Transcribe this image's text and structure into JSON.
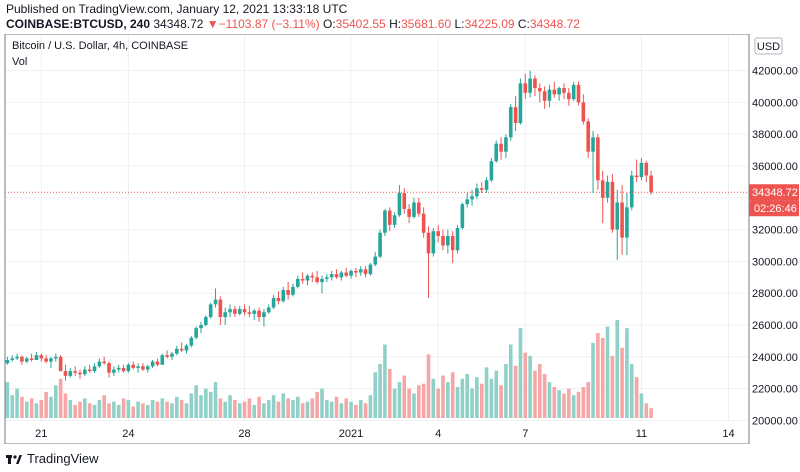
{
  "header": {
    "published": "Published on TradingView.com, January 12, 2021 13:33:18 UTC",
    "symbol": "COINBASE:BTCUSD, 240",
    "last": "34348.72",
    "change_arrow": "▼",
    "change": "−1103.87 (−3.11%)",
    "o_label": "O:",
    "o_value": "35402.55",
    "h_label": "H:",
    "h_value": "35681.60",
    "l_label": "L:",
    "l_value": "34225.09",
    "c_label": "C:",
    "c_value": "34348.72"
  },
  "legend": {
    "title": "Bitcoin / U.S. Dollar, 4h, COINBASE",
    "vol": "Vol"
  },
  "currency_button": "USD",
  "price_label": "34348.72",
  "countdown_label": "02:26:46",
  "footer": {
    "brand": "TradingView"
  },
  "colors": {
    "up": "#26a69a",
    "down": "#ef5350",
    "vol_up": "#8fd1c9",
    "vol_down": "#f5a6a5",
    "grid": "#eef0f3",
    "last_line": "#ef5350"
  },
  "chart_data": {
    "type": "candlestick",
    "title": "Bitcoin / U.S. Dollar, 4h, COINBASE",
    "interval": "4h",
    "y_ticks": [
      20000,
      22000,
      24000,
      26000,
      28000,
      30000,
      32000,
      34000,
      36000,
      38000,
      40000,
      42000
    ],
    "y_tick_labels": [
      "20000.00",
      "22000.00",
      "24000.00",
      "26000.00",
      "28000.00",
      "30000.00",
      "32000.00",
      "34000.00",
      "36000.00",
      "38000.00",
      "40000.00",
      "42000.00"
    ],
    "ylim": [
      19900,
      44300
    ],
    "x_ticks": [
      {
        "label": "21",
        "index": 7
      },
      {
        "label": "24",
        "index": 25
      },
      {
        "label": "28",
        "index": 49
      },
      {
        "label": "2021",
        "index": 71
      },
      {
        "label": "4",
        "index": 89
      },
      {
        "label": "7",
        "index": 107
      },
      {
        "label": "11",
        "index": 131
      },
      {
        "label": "14",
        "index": 149
      }
    ],
    "last_price": 34348.72,
    "candles": [
      {
        "o": 23600,
        "h": 24000,
        "l": 23500,
        "c": 23800
      },
      {
        "o": 23800,
        "h": 24100,
        "l": 23700,
        "c": 23900
      },
      {
        "o": 23900,
        "h": 24200,
        "l": 23800,
        "c": 24000
      },
      {
        "o": 24000,
        "h": 24100,
        "l": 23500,
        "c": 23700
      },
      {
        "o": 23700,
        "h": 24000,
        "l": 23600,
        "c": 23900
      },
      {
        "o": 23900,
        "h": 24200,
        "l": 23700,
        "c": 23800
      },
      {
        "o": 23800,
        "h": 24300,
        "l": 23800,
        "c": 24100
      },
      {
        "o": 24100,
        "h": 24200,
        "l": 23700,
        "c": 23900
      },
      {
        "o": 23900,
        "h": 24100,
        "l": 23600,
        "c": 23700
      },
      {
        "o": 23700,
        "h": 24000,
        "l": 23300,
        "c": 23900
      },
      {
        "o": 23900,
        "h": 24200,
        "l": 23700,
        "c": 24000
      },
      {
        "o": 24000,
        "h": 24100,
        "l": 23100,
        "c": 23100
      },
      {
        "o": 23100,
        "h": 23500,
        "l": 22500,
        "c": 22800
      },
      {
        "o": 22800,
        "h": 23300,
        "l": 22700,
        "c": 23100
      },
      {
        "o": 23100,
        "h": 23400,
        "l": 22800,
        "c": 23000
      },
      {
        "o": 23000,
        "h": 23200,
        "l": 22600,
        "c": 22900
      },
      {
        "o": 22900,
        "h": 23400,
        "l": 22800,
        "c": 23200
      },
      {
        "o": 23200,
        "h": 23500,
        "l": 23000,
        "c": 23100
      },
      {
        "o": 23100,
        "h": 23600,
        "l": 23000,
        "c": 23400
      },
      {
        "o": 23400,
        "h": 23900,
        "l": 23300,
        "c": 23700
      },
      {
        "o": 23700,
        "h": 24000,
        "l": 23500,
        "c": 23600
      },
      {
        "o": 23600,
        "h": 23700,
        "l": 22700,
        "c": 23000
      },
      {
        "o": 23000,
        "h": 23400,
        "l": 22800,
        "c": 23200
      },
      {
        "o": 23200,
        "h": 23500,
        "l": 23000,
        "c": 23300
      },
      {
        "o": 23300,
        "h": 23500,
        "l": 23000,
        "c": 23100
      },
      {
        "o": 23100,
        "h": 23600,
        "l": 23000,
        "c": 23500
      },
      {
        "o": 23500,
        "h": 23700,
        "l": 23200,
        "c": 23300
      },
      {
        "o": 23300,
        "h": 23600,
        "l": 23000,
        "c": 23400
      },
      {
        "o": 23400,
        "h": 23600,
        "l": 23100,
        "c": 23200
      },
      {
        "o": 23200,
        "h": 23500,
        "l": 23000,
        "c": 23400
      },
      {
        "o": 23400,
        "h": 23800,
        "l": 23300,
        "c": 23700
      },
      {
        "o": 23700,
        "h": 23900,
        "l": 23400,
        "c": 23500
      },
      {
        "o": 23500,
        "h": 24200,
        "l": 23500,
        "c": 24100
      },
      {
        "o": 24100,
        "h": 24400,
        "l": 23900,
        "c": 24000
      },
      {
        "o": 24000,
        "h": 24300,
        "l": 23800,
        "c": 24200
      },
      {
        "o": 24200,
        "h": 24700,
        "l": 24100,
        "c": 24500
      },
      {
        "o": 24500,
        "h": 24900,
        "l": 24300,
        "c": 24400
      },
      {
        "o": 24400,
        "h": 24800,
        "l": 24200,
        "c": 24700
      },
      {
        "o": 24700,
        "h": 25300,
        "l": 24600,
        "c": 25200
      },
      {
        "o": 25200,
        "h": 25900,
        "l": 25100,
        "c": 25800
      },
      {
        "o": 25800,
        "h": 26200,
        "l": 25500,
        "c": 26000
      },
      {
        "o": 26000,
        "h": 26600,
        "l": 25900,
        "c": 26500
      },
      {
        "o": 26500,
        "h": 27400,
        "l": 26400,
        "c": 27300
      },
      {
        "o": 27300,
        "h": 28300,
        "l": 27100,
        "c": 27600
      },
      {
        "o": 27600,
        "h": 27800,
        "l": 26000,
        "c": 26500
      },
      {
        "o": 26500,
        "h": 27100,
        "l": 26000,
        "c": 26800
      },
      {
        "o": 26800,
        "h": 27300,
        "l": 26500,
        "c": 27000
      },
      {
        "o": 27000,
        "h": 27200,
        "l": 26500,
        "c": 26700
      },
      {
        "o": 26700,
        "h": 27200,
        "l": 26600,
        "c": 27000
      },
      {
        "o": 27000,
        "h": 27300,
        "l": 26600,
        "c": 26800
      },
      {
        "o": 26800,
        "h": 27200,
        "l": 26500,
        "c": 26700
      },
      {
        "o": 26700,
        "h": 27000,
        "l": 26300,
        "c": 26900
      },
      {
        "o": 26900,
        "h": 27100,
        "l": 26200,
        "c": 26500
      },
      {
        "o": 26500,
        "h": 27000,
        "l": 25900,
        "c": 26800
      },
      {
        "o": 26800,
        "h": 27300,
        "l": 26700,
        "c": 27100
      },
      {
        "o": 27100,
        "h": 27900,
        "l": 27000,
        "c": 27700
      },
      {
        "o": 27700,
        "h": 28100,
        "l": 27300,
        "c": 27500
      },
      {
        "o": 27500,
        "h": 28400,
        "l": 27400,
        "c": 28200
      },
      {
        "o": 28200,
        "h": 28700,
        "l": 27600,
        "c": 27900
      },
      {
        "o": 27900,
        "h": 28600,
        "l": 27800,
        "c": 28400
      },
      {
        "o": 28400,
        "h": 29100,
        "l": 28300,
        "c": 28900
      },
      {
        "o": 28900,
        "h": 29300,
        "l": 28600,
        "c": 28800
      },
      {
        "o": 28800,
        "h": 29200,
        "l": 28500,
        "c": 29100
      },
      {
        "o": 29100,
        "h": 29300,
        "l": 28700,
        "c": 29000
      },
      {
        "o": 29000,
        "h": 29400,
        "l": 28600,
        "c": 28700
      },
      {
        "o": 28700,
        "h": 29100,
        "l": 28000,
        "c": 28900
      },
      {
        "o": 28900,
        "h": 29200,
        "l": 28700,
        "c": 29000
      },
      {
        "o": 29000,
        "h": 29400,
        "l": 28800,
        "c": 29200
      },
      {
        "o": 29200,
        "h": 29500,
        "l": 28900,
        "c": 29000
      },
      {
        "o": 29000,
        "h": 29400,
        "l": 28800,
        "c": 29300
      },
      {
        "o": 29300,
        "h": 29600,
        "l": 29000,
        "c": 29100
      },
      {
        "o": 29100,
        "h": 29500,
        "l": 28900,
        "c": 29400
      },
      {
        "o": 29400,
        "h": 29600,
        "l": 29000,
        "c": 29300
      },
      {
        "o": 29300,
        "h": 29700,
        "l": 29100,
        "c": 29500
      },
      {
        "o": 29500,
        "h": 29700,
        "l": 29000,
        "c": 29200
      },
      {
        "o": 29200,
        "h": 29900,
        "l": 29100,
        "c": 29800
      },
      {
        "o": 29800,
        "h": 30600,
        "l": 29700,
        "c": 30300
      },
      {
        "o": 30300,
        "h": 32000,
        "l": 30200,
        "c": 31800
      },
      {
        "o": 31800,
        "h": 33300,
        "l": 31600,
        "c": 33200
      },
      {
        "o": 33200,
        "h": 33400,
        "l": 31900,
        "c": 32300
      },
      {
        "o": 32300,
        "h": 33100,
        "l": 32100,
        "c": 32900
      },
      {
        "o": 32900,
        "h": 34800,
        "l": 32800,
        "c": 34300
      },
      {
        "o": 34300,
        "h": 34600,
        "l": 33000,
        "c": 33300
      },
      {
        "o": 33300,
        "h": 33600,
        "l": 32400,
        "c": 32800
      },
      {
        "o": 32800,
        "h": 34000,
        "l": 32700,
        "c": 33700
      },
      {
        "o": 33700,
        "h": 34000,
        "l": 32800,
        "c": 33000
      },
      {
        "o": 33000,
        "h": 33400,
        "l": 31500,
        "c": 31800
      },
      {
        "o": 31800,
        "h": 32200,
        "l": 27700,
        "c": 30500
      },
      {
        "o": 30500,
        "h": 32100,
        "l": 30300,
        "c": 31900
      },
      {
        "o": 31900,
        "h": 32300,
        "l": 31200,
        "c": 31600
      },
      {
        "o": 31600,
        "h": 32000,
        "l": 30700,
        "c": 31000
      },
      {
        "o": 31000,
        "h": 32000,
        "l": 30500,
        "c": 31600
      },
      {
        "o": 31600,
        "h": 31900,
        "l": 29900,
        "c": 30700
      },
      {
        "o": 30700,
        "h": 32300,
        "l": 30500,
        "c": 32100
      },
      {
        "o": 32100,
        "h": 33700,
        "l": 32000,
        "c": 33600
      },
      {
        "o": 33600,
        "h": 34300,
        "l": 33400,
        "c": 33900
      },
      {
        "o": 33900,
        "h": 34500,
        "l": 33500,
        "c": 34100
      },
      {
        "o": 34100,
        "h": 34900,
        "l": 33900,
        "c": 34600
      },
      {
        "o": 34600,
        "h": 35000,
        "l": 34300,
        "c": 34500
      },
      {
        "o": 34500,
        "h": 35300,
        "l": 34300,
        "c": 35100
      },
      {
        "o": 35100,
        "h": 36500,
        "l": 35000,
        "c": 36300
      },
      {
        "o": 36300,
        "h": 37600,
        "l": 36200,
        "c": 37400
      },
      {
        "o": 37400,
        "h": 37800,
        "l": 36400,
        "c": 36900
      },
      {
        "o": 36900,
        "h": 38000,
        "l": 36500,
        "c": 37800
      },
      {
        "o": 37800,
        "h": 39900,
        "l": 37600,
        "c": 39700
      },
      {
        "o": 39700,
        "h": 40400,
        "l": 38200,
        "c": 38700
      },
      {
        "o": 38700,
        "h": 41500,
        "l": 38600,
        "c": 41200
      },
      {
        "o": 41200,
        "h": 41800,
        "l": 40200,
        "c": 40600
      },
      {
        "o": 40600,
        "h": 42000,
        "l": 40300,
        "c": 41500
      },
      {
        "o": 41500,
        "h": 41700,
        "l": 40400,
        "c": 40900
      },
      {
        "o": 40900,
        "h": 41200,
        "l": 40000,
        "c": 40700
      },
      {
        "o": 40700,
        "h": 41000,
        "l": 39600,
        "c": 40100
      },
      {
        "o": 40100,
        "h": 41100,
        "l": 39700,
        "c": 40800
      },
      {
        "o": 40800,
        "h": 41300,
        "l": 40300,
        "c": 40500
      },
      {
        "o": 40500,
        "h": 41000,
        "l": 40100,
        "c": 40900
      },
      {
        "o": 40900,
        "h": 41200,
        "l": 40200,
        "c": 40600
      },
      {
        "o": 40600,
        "h": 40900,
        "l": 39800,
        "c": 40200
      },
      {
        "o": 40200,
        "h": 41300,
        "l": 40100,
        "c": 41100
      },
      {
        "o": 41100,
        "h": 41300,
        "l": 39800,
        "c": 40000
      },
      {
        "o": 40000,
        "h": 40500,
        "l": 38600,
        "c": 38800
      },
      {
        "o": 38800,
        "h": 39000,
        "l": 36500,
        "c": 36900
      },
      {
        "o": 36900,
        "h": 38200,
        "l": 34300,
        "c": 37800
      },
      {
        "o": 37800,
        "h": 38000,
        "l": 34500,
        "c": 35100
      },
      {
        "o": 35100,
        "h": 35700,
        "l": 32400,
        "c": 34000
      },
      {
        "o": 34000,
        "h": 35400,
        "l": 33700,
        "c": 35000
      },
      {
        "o": 35000,
        "h": 35500,
        "l": 31800,
        "c": 32000
      },
      {
        "o": 32000,
        "h": 34500,
        "l": 30100,
        "c": 33700
      },
      {
        "o": 33700,
        "h": 34800,
        "l": 30400,
        "c": 31500
      },
      {
        "o": 31500,
        "h": 34300,
        "l": 30400,
        "c": 33400
      },
      {
        "o": 33400,
        "h": 35700,
        "l": 33200,
        "c": 35400
      },
      {
        "o": 35400,
        "h": 36400,
        "l": 35000,
        "c": 35300
      },
      {
        "o": 35300,
        "h": 36500,
        "l": 35100,
        "c": 36200
      },
      {
        "o": 36200,
        "h": 36300,
        "l": 35000,
        "c": 35400
      },
      {
        "o": 35400,
        "h": 35700,
        "l": 34200,
        "c": 34349
      }
    ],
    "volume": [
      22,
      14,
      18,
      13,
      10,
      12,
      9,
      11,
      16,
      13,
      20,
      24,
      15,
      11,
      8,
      10,
      12,
      9,
      8,
      11,
      14,
      9,
      10,
      8,
      12,
      11,
      7,
      10,
      9,
      8,
      11,
      10,
      12,
      10,
      9,
      13,
      11,
      9,
      15,
      20,
      14,
      18,
      16,
      22,
      12,
      10,
      14,
      11,
      9,
      10,
      12,
      8,
      13,
      9,
      11,
      14,
      10,
      15,
      12,
      11,
      13,
      9,
      10,
      12,
      16,
      18,
      11,
      10,
      13,
      9,
      12,
      10,
      8,
      11,
      9,
      14,
      28,
      33,
      45,
      30,
      18,
      22,
      26,
      18,
      15,
      20,
      21,
      39,
      24,
      18,
      26,
      22,
      28,
      19,
      24,
      27,
      18,
      25,
      21,
      31,
      24,
      29,
      20,
      33,
      45,
      32,
      55,
      40,
      38,
      29,
      33,
      27,
      22,
      19,
      17,
      15,
      18,
      14,
      16,
      19,
      22,
      46,
      52,
      49,
      56,
      38,
      60,
      43,
      55,
      33,
      25,
      15,
      9,
      6
    ]
  }
}
